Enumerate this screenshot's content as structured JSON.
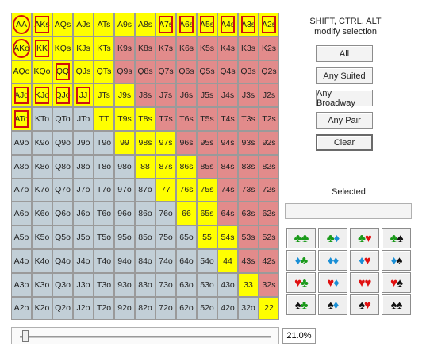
{
  "grid": {
    "rows": [
      [
        "AA",
        "AKs",
        "AQs",
        "AJs",
        "ATs",
        "A9s",
        "A8s",
        "A7s",
        "A6s",
        "A5s",
        "A4s",
        "A3s",
        "A2s"
      ],
      [
        "AKo",
        "KK",
        "KQs",
        "KJs",
        "KTs",
        "K9s",
        "K8s",
        "K7s",
        "K6s",
        "K5s",
        "K4s",
        "K3s",
        "K2s"
      ],
      [
        "AQo",
        "KQo",
        "QQ",
        "QJs",
        "QTs",
        "Q9s",
        "Q8s",
        "Q7s",
        "Q6s",
        "Q5s",
        "Q4s",
        "Q3s",
        "Q2s"
      ],
      [
        "AJo",
        "KJo",
        "QJo",
        "JJ",
        "JTs",
        "J9s",
        "J8s",
        "J7s",
        "J6s",
        "J5s",
        "J4s",
        "J3s",
        "J2s"
      ],
      [
        "ATo",
        "KTo",
        "QTo",
        "JTo",
        "TT",
        "T9s",
        "T8s",
        "T7s",
        "T6s",
        "T5s",
        "T4s",
        "T3s",
        "T2s"
      ],
      [
        "A9o",
        "K9o",
        "Q9o",
        "J9o",
        "T9o",
        "99",
        "98s",
        "97s",
        "96s",
        "95s",
        "94s",
        "93s",
        "92s"
      ],
      [
        "A8o",
        "K8o",
        "Q8o",
        "J8o",
        "T8o",
        "98o",
        "88",
        "87s",
        "86s",
        "85s",
        "84s",
        "83s",
        "82s"
      ],
      [
        "A7o",
        "K7o",
        "Q7o",
        "J7o",
        "T7o",
        "97o",
        "87o",
        "77",
        "76s",
        "75s",
        "74s",
        "73s",
        "72s"
      ],
      [
        "A6o",
        "K6o",
        "Q6o",
        "J6o",
        "T6o",
        "96o",
        "86o",
        "76o",
        "66",
        "65s",
        "64s",
        "63s",
        "62s"
      ],
      [
        "A5o",
        "K5o",
        "Q5o",
        "J5o",
        "T5o",
        "95o",
        "85o",
        "75o",
        "65o",
        "55",
        "54s",
        "53s",
        "52s"
      ],
      [
        "A4o",
        "K4o",
        "Q4o",
        "J4o",
        "T4o",
        "94o",
        "84o",
        "74o",
        "64o",
        "54o",
        "44",
        "43s",
        "42s"
      ],
      [
        "A3o",
        "K3o",
        "Q3o",
        "J3o",
        "T3o",
        "93o",
        "83o",
        "73o",
        "63o",
        "53o",
        "43o",
        "33",
        "32s"
      ],
      [
        "A2o",
        "K2o",
        "Q2o",
        "J2o",
        "T2o",
        "92o",
        "82o",
        "72o",
        "62o",
        "52o",
        "42o",
        "32o",
        "22"
      ]
    ],
    "selected_hands": [
      "AA",
      "AKs",
      "AQs",
      "AJs",
      "ATs",
      "A9s",
      "A8s",
      "A7s",
      "A6s",
      "A5s",
      "A4s",
      "A3s",
      "A2s",
      "AKo",
      "KK",
      "KQs",
      "KJs",
      "KTs",
      "AQo",
      "KQo",
      "QQ",
      "QJs",
      "QTs",
      "AJo",
      "KJo",
      "QJo",
      "JJ",
      "JTs",
      "J9s",
      "ATo",
      "TT",
      "T9s",
      "T8s",
      "99",
      "98s",
      "97s",
      "88",
      "87s",
      "86s",
      "77",
      "76s",
      "75s",
      "66",
      "65s",
      "55",
      "54s",
      "44",
      "33",
      "22"
    ],
    "marked_hands": [
      "AA",
      "AKs",
      "A7s",
      "A6s",
      "A5s",
      "A4s",
      "A3s",
      "A2s",
      "AKo",
      "KK",
      "QQ",
      "AJo",
      "KJo",
      "QJo",
      "JJ",
      "ATo"
    ],
    "circled_hands": [
      "AA",
      "AKo"
    ],
    "colors": {
      "selected": "#ffff00",
      "suited": "#e28b8b",
      "offsuit": "#c2cfd7",
      "marker": "#d01010"
    }
  },
  "info_text_line1": "SHIFT, CTRL, ALT",
  "info_text_line2": "modify selection",
  "buttons": {
    "all": "All",
    "any_suited": "Any Suited",
    "any_broadway": "Any Broadway",
    "any_pair": "Any Pair",
    "clear": "Clear"
  },
  "selected_label": "Selected",
  "selected_value": "",
  "suit_combos": [
    [
      [
        "club",
        "club"
      ],
      [
        "club",
        "diamond"
      ],
      [
        "club",
        "heart"
      ],
      [
        "club",
        "spade"
      ]
    ],
    [
      [
        "diamond",
        "club"
      ],
      [
        "diamond",
        "diamond"
      ],
      [
        "diamond",
        "heart"
      ],
      [
        "diamond",
        "spade"
      ]
    ],
    [
      [
        "heart",
        "club"
      ],
      [
        "heart",
        "diamond"
      ],
      [
        "heart",
        "heart"
      ],
      [
        "heart",
        "spade"
      ]
    ],
    [
      [
        "spade",
        "club"
      ],
      [
        "spade",
        "diamond"
      ],
      [
        "spade",
        "heart"
      ],
      [
        "spade",
        "spade"
      ]
    ]
  ],
  "suit_colors": {
    "club": "#1a9a1a",
    "diamond": "#1a8fd6",
    "heart": "#e01010",
    "spade": "#111111"
  },
  "suit_glyphs": {
    "club": "♣",
    "diamond": "♦",
    "heart": "♥",
    "spade": "♠"
  },
  "range_slider": {
    "value_fraction": 0.21
  },
  "range_percent": "21.0%"
}
